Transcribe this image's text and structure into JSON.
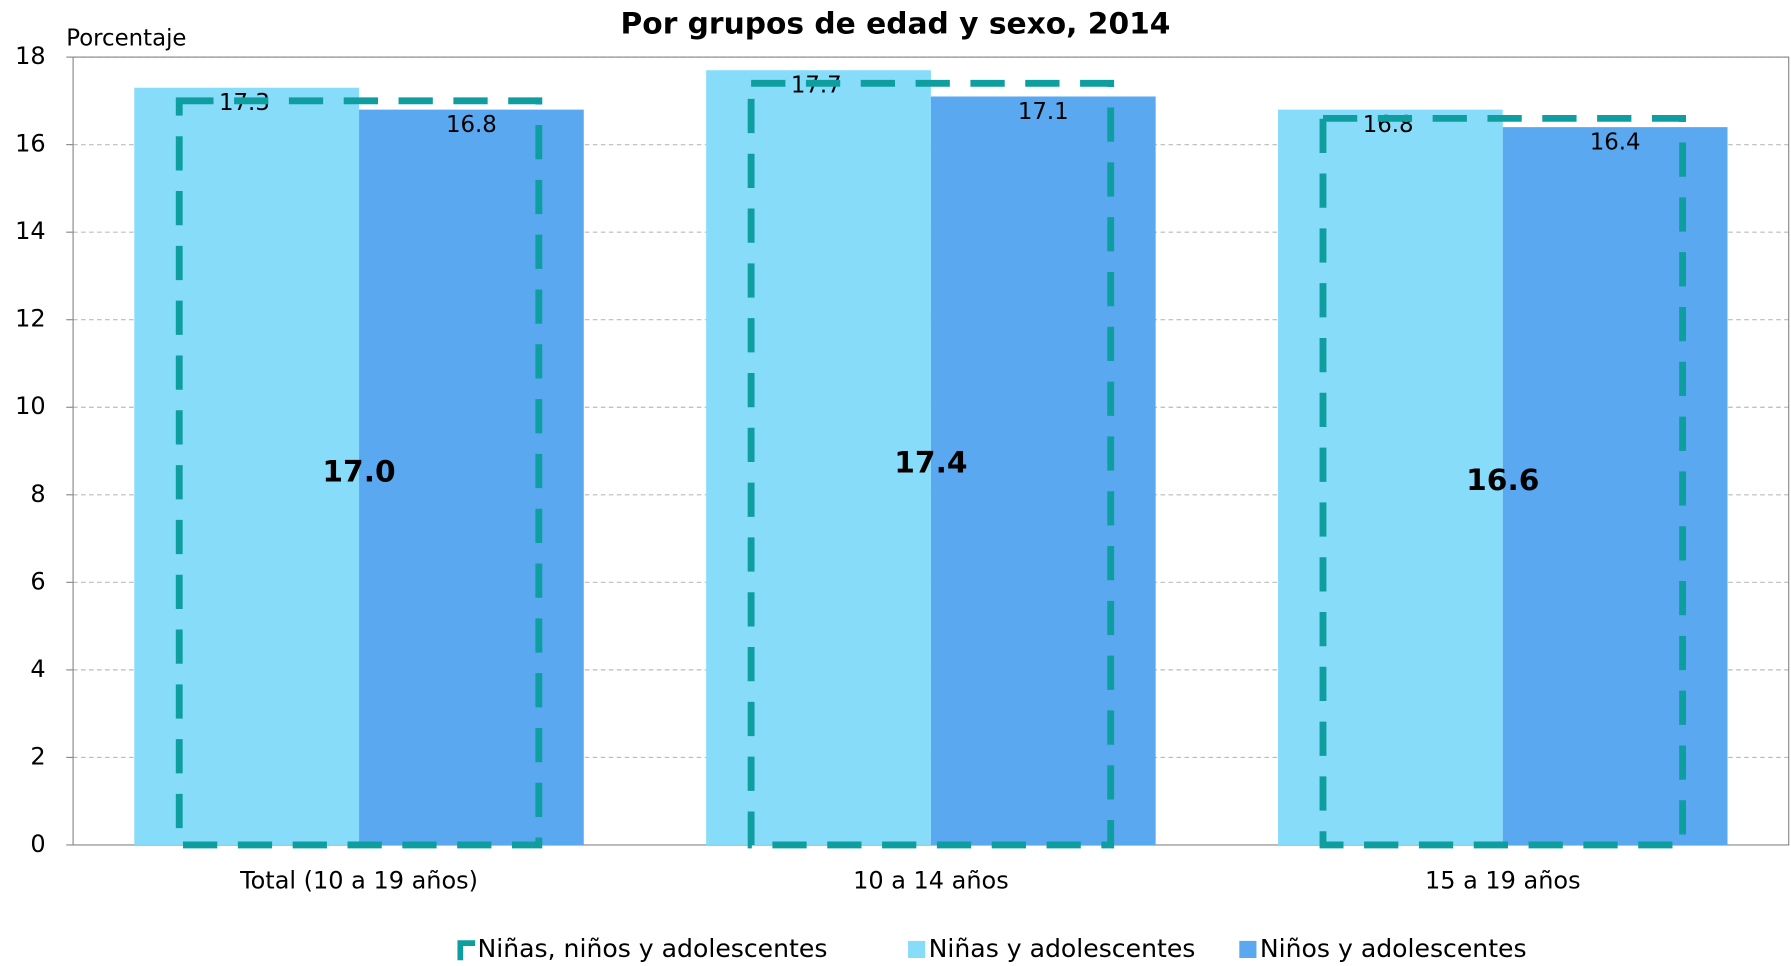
{
  "chart_data": {
    "type": "bar",
    "title": "Por grupos de edad y sexo, 2014",
    "y_label": "Porcentaje",
    "categories": [
      "Total  (10 a 19 años)",
      "10 a 14 años",
      "15 a 19 años"
    ],
    "series": [
      {
        "name": "Niñas, niños y adolescentes",
        "color": "#0e9ea0",
        "dashed": true,
        "values": [
          17.0,
          17.4,
          16.6
        ],
        "value_labels": [
          "17.0",
          "17.4",
          "16.6"
        ]
      },
      {
        "name": "Niñas y adolescentes",
        "color": "#87dcfa",
        "values": [
          17.3,
          17.7,
          16.8
        ]
      },
      {
        "name": "Niños  y adolescentes",
        "color": "#5aa9f0",
        "values": [
          16.8,
          17.1,
          16.4
        ]
      }
    ],
    "ylim": [
      0,
      18
    ],
    "yticks": [
      0,
      2,
      4,
      6,
      8,
      10,
      12,
      14,
      16,
      18
    ],
    "grid": true
  }
}
